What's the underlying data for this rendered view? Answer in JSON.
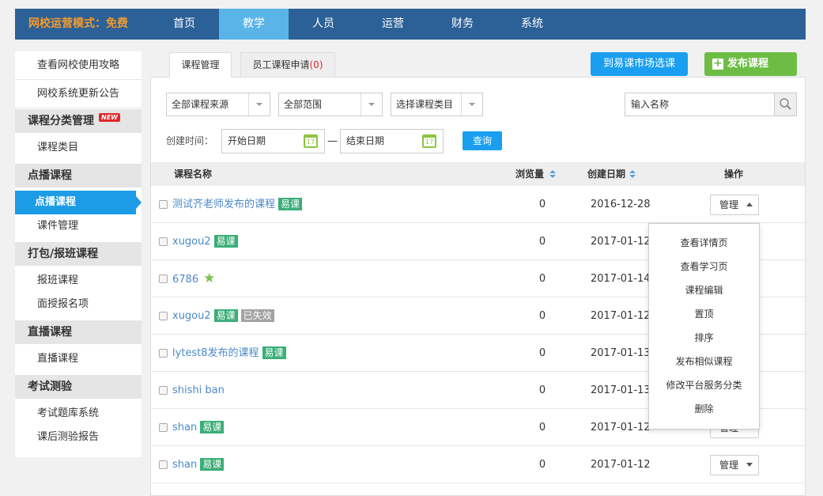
{
  "header": {
    "logo": "网校运营模式：免费",
    "nav": [
      "首页",
      "教学",
      "人员",
      "运营",
      "财务",
      "系统"
    ],
    "active_nav": 1
  },
  "sidebar": {
    "items": [
      {
        "text": "查看网校使用攻略",
        "kind": "link"
      },
      {
        "text": "网校系统更新公告",
        "kind": "link"
      },
      {
        "text": "课程分类管理",
        "kind": "group",
        "badge": "NEW"
      },
      {
        "text": "课程类目",
        "kind": "item"
      },
      {
        "text": "点播课程",
        "kind": "group"
      },
      {
        "text": "点播课程",
        "kind": "active"
      },
      {
        "text": "课件管理",
        "kind": "item"
      },
      {
        "text": "打包/报班课程",
        "kind": "group"
      },
      {
        "text": "报班课程",
        "kind": "item"
      },
      {
        "text": "面授报名项",
        "kind": "item"
      },
      {
        "text": "直播课程",
        "kind": "group"
      },
      {
        "text": "直播课程",
        "kind": "item"
      },
      {
        "text": "考试测验",
        "kind": "group"
      },
      {
        "text": "考试题库系统",
        "kind": "item"
      },
      {
        "text": "课后测验报告",
        "kind": "item"
      }
    ]
  },
  "tabs": [
    {
      "text": "课程管理"
    },
    {
      "text": "员工课程申请",
      "count": "(0)"
    }
  ],
  "buttons": {
    "market": "到易课市场选课",
    "publish": "发布课程"
  },
  "filters": {
    "source": "全部课程来源",
    "range": "全部范围",
    "category": "选择课程类目",
    "search": "输入名称",
    "date_label": "创建时间：",
    "start": "开始日期",
    "dash": "—",
    "end": "结束日期",
    "calendar_day": "17",
    "query": "查询"
  },
  "table": {
    "columns": [
      "课程名称",
      "浏览量",
      "创建日期",
      "操作"
    ],
    "rows": [
      {
        "name": "测试齐老师发布的课程",
        "tags": [
          {
            "text": "易课",
            "color": "#3aae78"
          }
        ],
        "views": 0,
        "date": "2016-12-28",
        "action": "管理",
        "open": true
      },
      {
        "name": "xugou2",
        "tags": [
          {
            "text": "易课",
            "color": "#3aae78"
          }
        ],
        "views": 0,
        "date": "2017-01-12"
      },
      {
        "name": "6786",
        "starred": true,
        "tags": [],
        "views": 0,
        "date": "2017-01-14"
      },
      {
        "name": "xugou2",
        "tags": [
          {
            "text": "易课",
            "color": "#3aae78"
          },
          {
            "text": "已失效",
            "color": "#a3a3a3"
          }
        ],
        "views": 0,
        "date": "2017-01-12"
      },
      {
        "name": "lytest8发布的课程",
        "tags": [
          {
            "text": "易课",
            "color": "#3aae78"
          }
        ],
        "views": 0,
        "date": "2017-01-13"
      },
      {
        "name": "shishi ban",
        "tags": [],
        "views": 0,
        "date": "2017-01-13"
      },
      {
        "name": "shan",
        "tags": [
          {
            "text": "易课",
            "color": "#3aae78"
          }
        ],
        "views": 0,
        "date": "2017-01-12",
        "action": "管理"
      },
      {
        "name": "shan",
        "tags": [
          {
            "text": "易课",
            "color": "#3aae78"
          }
        ],
        "views": 0,
        "date": "2017-01-12",
        "action": "管理"
      }
    ]
  },
  "menu": [
    "查看详情页",
    "查看学习页",
    "课程编辑",
    "置顶",
    "排序",
    "发布相似课程",
    "修改平台服务分类",
    "删除"
  ]
}
